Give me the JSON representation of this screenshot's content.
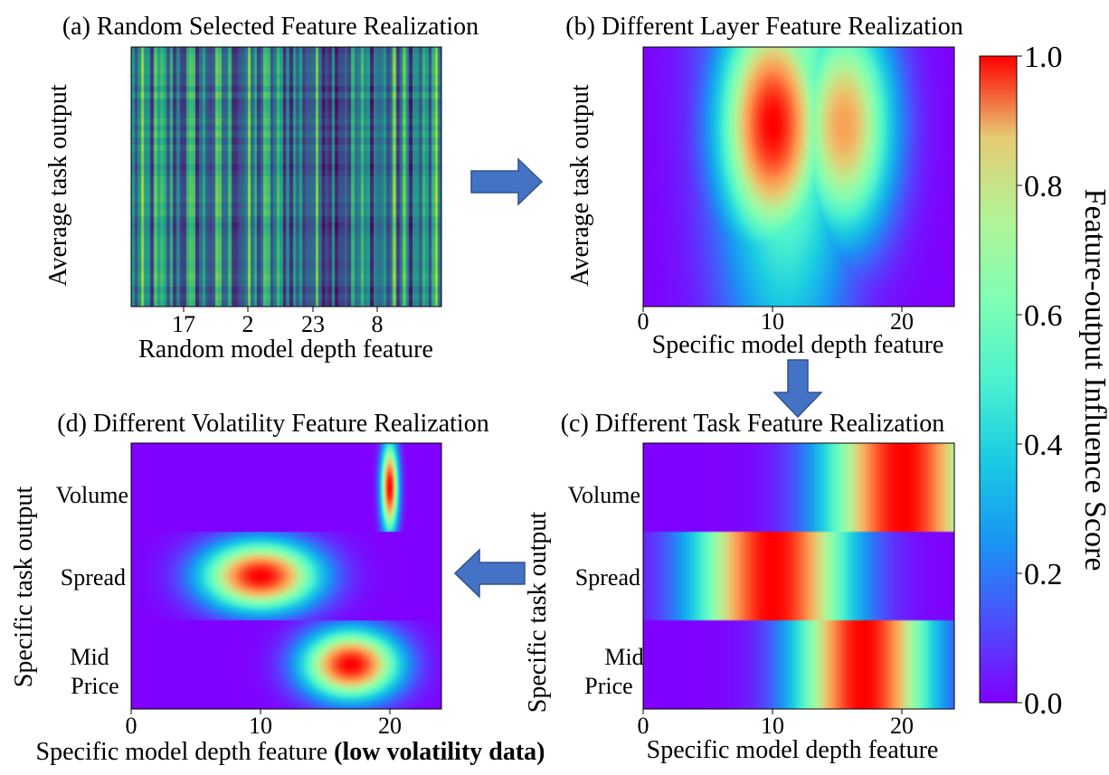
{
  "colors": {
    "arrow_fill": "#4472C4",
    "arrow_stroke": "#2F528F",
    "colormap": "rainbow",
    "panel_a_colormap": "viridis"
  },
  "chart_data": [
    {
      "id": "a",
      "type": "heatmap",
      "title": "(a) Random Selected Feature Realization",
      "xlabel": "Random model depth feature",
      "ylabel": "Average task output",
      "x_ticks": [
        "17",
        "2",
        "23",
        "8"
      ],
      "note_values": "vertical stripes of random intensity across 96 feature columns (viridis)"
    },
    {
      "id": "b",
      "type": "heatmap",
      "title": "(b) Different Layer Feature Realization",
      "xlabel": "Specific model depth feature",
      "ylabel": "Average task output",
      "xlim": [
        0,
        24
      ],
      "x_ticks": [
        "0",
        "10",
        "20"
      ],
      "blobs": [
        {
          "x": 10,
          "y": 0.3,
          "sx": 2.8,
          "sy": 0.32,
          "amp": 1.0
        },
        {
          "x": 15.5,
          "y": 0.3,
          "sx": 2.6,
          "sy": 0.3,
          "amp": 0.78
        },
        {
          "x": 11,
          "y": 0.1,
          "sx": 3.6,
          "sy": 0.8,
          "amp": 0.55
        }
      ]
    },
    {
      "id": "c",
      "type": "heatmap",
      "title": "(c) Different Task Feature Realization",
      "xlabel": "Specific model depth feature",
      "ylabel": "Specific task output",
      "xlim": [
        0,
        24
      ],
      "x_ticks": [
        "0",
        "10",
        "20"
      ],
      "rows": [
        {
          "label": "Volume",
          "peak_x": 20,
          "spread": 4.0
        },
        {
          "label": "Spread",
          "peak_x": 10,
          "spread": 4.0
        },
        {
          "label": "Mid\nPrice",
          "peak_x": 17,
          "spread": 3.5
        }
      ]
    },
    {
      "id": "d",
      "type": "heatmap",
      "title": "(d) Different Volatility Feature Realization",
      "xlabel": "Specific model depth feature",
      "xlabel_bold": "(low volatility data)",
      "ylabel": "Specific task output",
      "xlim": [
        0,
        24
      ],
      "x_ticks": [
        "0",
        "10",
        "20"
      ],
      "rows": [
        {
          "label": "Volume",
          "peak_x": 20,
          "spread": 0.45
        },
        {
          "label": "Spread",
          "peak_x": 10,
          "spread": 3.0
        },
        {
          "label": "Mid\nPrice",
          "peak_x": 17,
          "spread": 2.5
        }
      ]
    },
    {
      "id": "colorbar",
      "type": "colorbar",
      "label": "Feature-output Influence Score",
      "range": [
        0.0,
        1.0
      ],
      "ticks": [
        "0.0",
        "0.2",
        "0.4",
        "0.6",
        "0.8",
        "1.0"
      ]
    }
  ]
}
